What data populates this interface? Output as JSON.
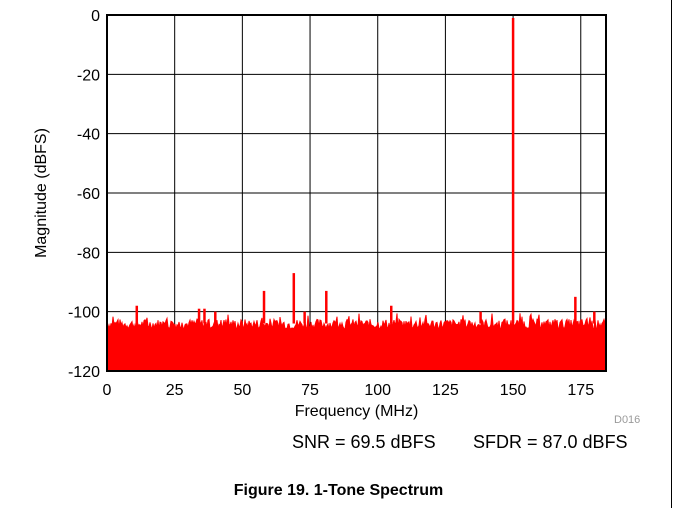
{
  "chart_data": {
    "type": "line",
    "xlabel": "Frequency (MHz)",
    "ylabel": "Magnitude (dBFS)",
    "xlim": [
      0,
      184.32
    ],
    "ylim": [
      -120,
      0
    ],
    "xticks": [
      0,
      25,
      50,
      75,
      100,
      125,
      150,
      175
    ],
    "yticks": [
      0,
      -20,
      -40,
      -60,
      -80,
      -100,
      -120
    ],
    "grid": true,
    "color": "#ff0000",
    "noise_floor_dbfs": -104,
    "spurs": [
      {
        "x": 11,
        "y": -98
      },
      {
        "x": 34,
        "y": -99
      },
      {
        "x": 36,
        "y": -99
      },
      {
        "x": 40,
        "y": -100
      },
      {
        "x": 58,
        "y": -93
      },
      {
        "x": 69,
        "y": -87
      },
      {
        "x": 73,
        "y": -100
      },
      {
        "x": 81,
        "y": -93
      },
      {
        "x": 105,
        "y": -98
      },
      {
        "x": 138,
        "y": -100
      },
      {
        "x": 150,
        "y": -1
      },
      {
        "x": 173,
        "y": -95
      },
      {
        "x": 180,
        "y": -100
      }
    ],
    "annotations": {
      "snr": "SNR = 69.5 dBFS",
      "sfdr": "SFDR = 87.0 dBFS"
    }
  },
  "figure_code": "D016",
  "caption": "Figure 19. 1-Tone Spectrum"
}
